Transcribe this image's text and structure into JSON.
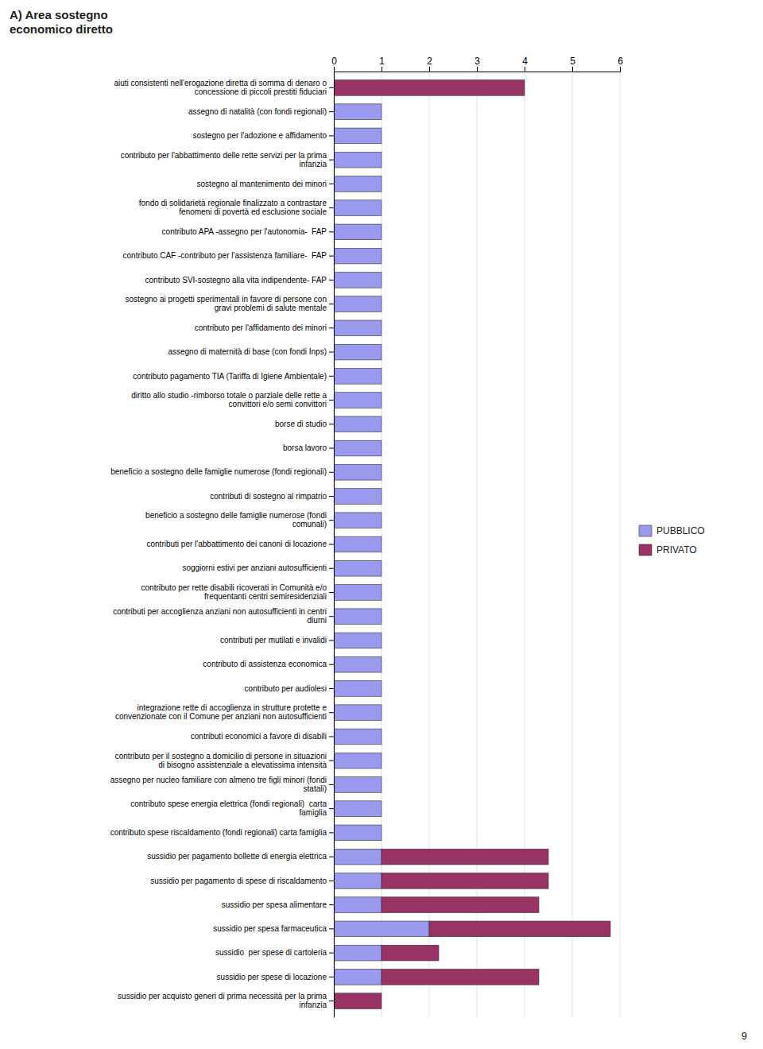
{
  "chart_data": {
    "type": "bar",
    "orientation": "horizontal",
    "stacked": true,
    "title": "A) Area sostegno\neconomico diretto",
    "categories": [
      "aiuti consistenti nell'erogazione diretta di somma di denaro o\nconcessione di piccoli prestiti fiduciari",
      "assegno di natalità (con fondi regionali)",
      "sostegno per l'adozione e affidamento",
      "contributo per l'abbattimento delle rette servizi per la prima\ninfanzia",
      "sostegno al mantenimento dei minori",
      "fondo di solidarietà regionale finalizzato a contrastare\nfenomeni di povertà ed esclusione sociale",
      "contributo APA -assegno per l'autonomia-  FAP",
      "contributo CAF -contributo per l'assistenza familiare-  FAP",
      "contributo SVI-sostegno alla vita indipendente- FAP",
      "sostegno ai progetti sperimentali in favore di persone con\ngravi problemi di salute mentale",
      "contributo per l'affidamento dei minori",
      "assegno di maternità di base (con fondi Inps)",
      "contributo pagamento TIA (Tariffa di Igiene Ambientale)",
      "diritto allo studio -rimborso totale o parziale delle rette a\nconvittori e/o semi convittori",
      "borse di studio",
      "borsa lavoro",
      "beneficio a sostegno delle famiglie numerose (fondi regionali)",
      "contributi di sostegno al rimpatrio",
      "beneficio a sostegno delle famiglie numerose (fondi\ncomunali)",
      "contributi per l'abbattimento dei canoni di locazione",
      "soggiorni estivi per anziani autosufficienti",
      "contributo per rette disabili ricoverati in Comunità e/o\nfrequentanti centri semiresidenziali",
      "contributi per accoglienza anziani non autosufficienti in centri\ndiurni",
      "contributi per mutilati e invalidi",
      "contributo di assistenza economica",
      "contributo per audiolesi",
      "integrazione rette di accoglienza in strutture protette e\nconvenzionate con il Comune per anziani non autosufficienti",
      "contributi economici a favore di disabili",
      "contributo per il sostegno a domicilio di persone in situazioni\ndi bisogno assistenziale a elevatissima intensità",
      "assegno per nucleo familiare con almeno tre figli minori (fondi\nstatali)",
      "contributo spese energia elettrica (fondi regionali)  carta\nfamiglia",
      "contributo spese riscaldamento (fondi regionali) carta famiglia",
      "sussidio per pagamento bollette di energia elettrica",
      "sussidio per pagamento di spese di riscaldamento",
      "sussidio per spesa alimentare",
      "sussidio per spesa farmaceutica",
      "sussidio  per spese di cartoleria",
      "sussidio per spese di locazione",
      "sussidio per acquisto generi di prima necessità per la prima\ninfanzia"
    ],
    "series": [
      {
        "name": "PUBBLICO",
        "color": "#9999ee",
        "values": [
          0,
          1,
          1,
          1,
          1,
          1,
          1,
          1,
          1,
          1,
          1,
          1,
          1,
          1,
          1,
          1,
          1,
          1,
          1,
          1,
          1,
          1,
          1,
          1,
          1,
          1,
          1,
          1,
          1,
          1,
          1,
          1,
          1,
          1,
          1,
          2,
          1,
          1,
          0
        ]
      },
      {
        "name": "PRIVATO",
        "color": "#993366",
        "values": [
          4,
          0,
          0,
          0,
          0,
          0,
          0,
          0,
          0,
          0,
          0,
          0,
          0,
          0,
          0,
          0,
          0,
          0,
          0,
          0,
          0,
          0,
          0,
          0,
          0,
          0,
          0,
          0,
          0,
          0,
          0,
          0,
          3.5,
          3.5,
          3.3,
          3.8,
          1.2,
          3.3,
          1
        ]
      }
    ],
    "xlim": [
      0,
      6
    ],
    "xticks": [
      0,
      1,
      2,
      3,
      4,
      5,
      6
    ],
    "grid": true,
    "legend": "right",
    "annotations": [
      "9"
    ]
  }
}
